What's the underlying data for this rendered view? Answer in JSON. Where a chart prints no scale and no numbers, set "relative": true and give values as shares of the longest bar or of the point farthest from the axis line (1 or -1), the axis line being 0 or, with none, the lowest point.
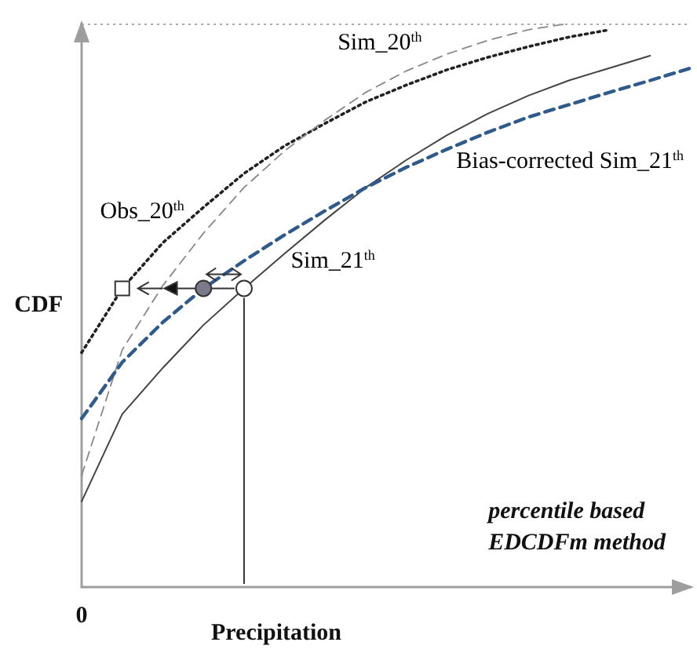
{
  "chart_data": {
    "type": "line",
    "relative": true,
    "xlabel": "Precipitation",
    "ylabel": "CDF",
    "grid": false,
    "marker": "none",
    "categories": [
      null,
      null,
      null,
      null,
      null,
      null,
      null,
      null,
      null,
      null,
      null,
      null,
      null,
      null,
      null,
      null
    ],
    "series": [
      {
        "name": "Obs_20$^{th}$",
        "color": "#222222",
        "line_style": "dotted",
        "values": [
          0.416,
          0.53,
          0.611,
          0.674,
          0.734,
          0.783,
          0.823,
          0.861,
          0.891,
          0.918,
          0.94,
          0.959,
          0.976,
          0.989,
          null,
          null
        ]
      },
      {
        "name": "Sim_20$^{th}$",
        "color": "#888888",
        "line_style": "dashed",
        "values": [
          0.198,
          0.421,
          0.535,
          0.628,
          0.709,
          0.774,
          0.829,
          0.878,
          0.916,
          0.946,
          0.97,
          0.989,
          1,
          null,
          null,
          null
        ]
      },
      {
        "name": "Sim_21$^{th}$",
        "color": "#444444",
        "line_style": "solid",
        "values": [
          0.152,
          0.307,
          0.389,
          0.465,
          0.53,
          0.592,
          0.652,
          0.709,
          0.758,
          0.802,
          0.84,
          0.872,
          0.899,
          0.921,
          0.943,
          null
        ]
      },
      {
        "name": "Bias-corrected Sim_21$^{th}$",
        "color": "#2e5a8c",
        "line_style": "dashed",
        "values": [
          0.299,
          0.399,
          0.47,
          0.53,
          0.579,
          0.625,
          0.668,
          0.709,
          0.745,
          0.777,
          0.807,
          0.834,
          0.856,
          0.878,
          0.899,
          0.921
        ]
      }
    ],
    "ref_lines": [
      {
        "axis": "y",
        "value": 1,
        "color": "#aaaaaa",
        "line_style": "dotted"
      }
    ],
    "annotations": [
      "percentile based\nEDCDFm method",
      "0"
    ]
  }
}
